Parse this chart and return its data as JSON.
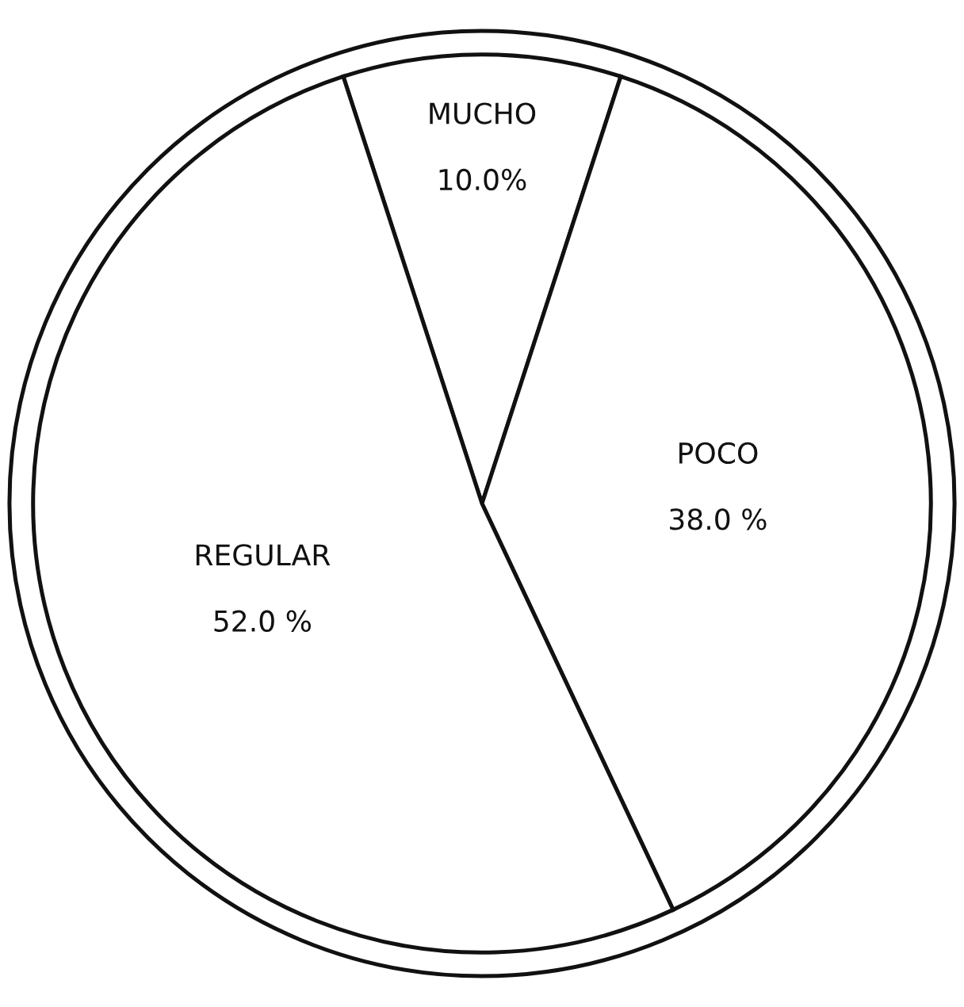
{
  "chart_data": {
    "type": "pie",
    "categories": [
      "MUCHO",
      "POCO",
      "REGULAR"
    ],
    "values": [
      10,
      38,
      52
    ],
    "colors": [
      "#ffffff",
      "#ffffff",
      "#ffffff"
    ],
    "value_labels": [
      "10.0%",
      "38.0 %",
      "52.0 %"
    ],
    "legend": false
  }
}
